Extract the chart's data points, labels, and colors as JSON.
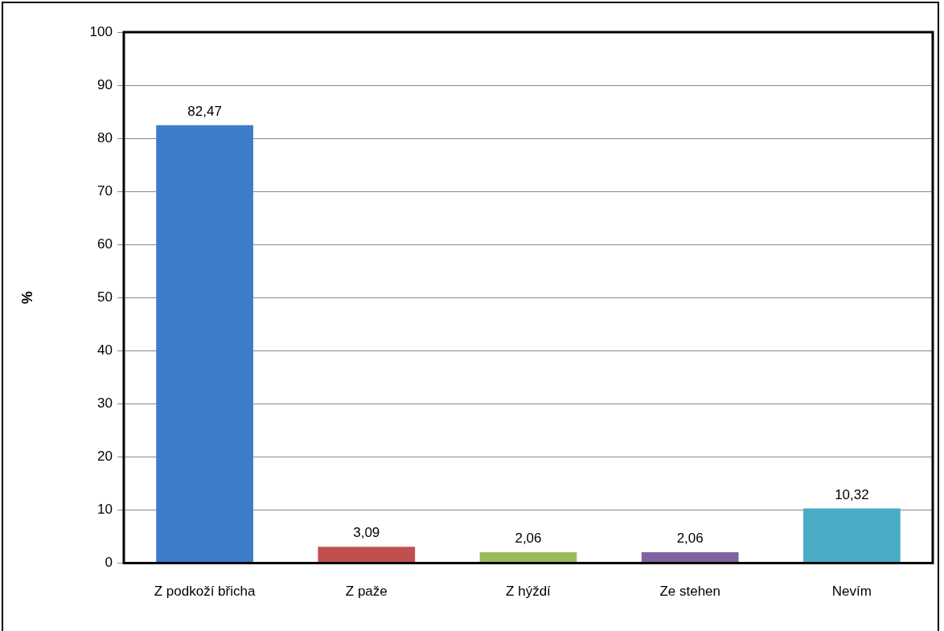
{
  "chart_data": {
    "type": "bar",
    "ylabel": "%",
    "categories": [
      "Z podkoží břicha",
      "Z paže",
      "Z hýždí",
      "Ze stehen",
      "Nevím"
    ],
    "values": [
      82.47,
      3.09,
      2.06,
      2.06,
      10.32
    ],
    "colors": [
      "#3d7cc9",
      "#c0504d",
      "#9bbb59",
      "#8064a2",
      "#4bacc6"
    ],
    "value_labels": [
      "82,47",
      "3,09",
      "2,06",
      "2,06",
      "10,32"
    ],
    "ylim": [
      0,
      100
    ],
    "yticks": [
      0,
      10,
      20,
      30,
      40,
      50,
      60,
      70,
      80,
      90,
      100
    ],
    "grid": "y",
    "legend": false
  }
}
